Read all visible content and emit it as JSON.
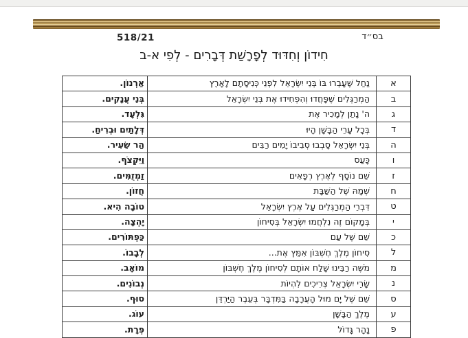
{
  "page": {
    "bsd": "בס״ד",
    "doc_number": "518/21",
    "title": "חִידוֹן וְחִדּוּד לְפָרָשַׁת דְּבָרִים - לְפִי א-ב"
  },
  "colors": {
    "gold_dark": "#46320f",
    "gold_light": "#f3e1ad",
    "table_border": "#3c3c3c",
    "text": "#1c1c1c",
    "top_strip": "#f1f1ef"
  },
  "table": {
    "rows": [
      {
        "letter": "א",
        "question": "נַחַל שֶׁעָבְרוּ בּוֹ בְּנֵי יִשְׂרָאֵל לִפְנֵי כְּנִיסָתָם לָאָרֶץ",
        "answer": "אַרְנוֹן."
      },
      {
        "letter": "ב",
        "question": "הַמְרַגְּלִים שֶׁפָּחֲדוּ וְהִפְחִידוּ אֶת בְּנֵי יִשְׂרָאֵל",
        "answer": "בְּנֵי עֲנָקִים."
      },
      {
        "letter": "ג",
        "question": "ה' נָתַן לְמָכִיר אֶת",
        "answer": "גִּלְעָד."
      },
      {
        "letter": "ד",
        "question": "בְּכָל עָרֵי הַבָּשָׁן הָיוּ",
        "answer": "דְּלָתַיִם וּבְרִיחַ."
      },
      {
        "letter": "ה",
        "question": "בְּנֵי יִשְׂרָאֵל סָבְבוּ סְבִיבוֹ יָמִים רַבִּים",
        "answer": "הַר שֵׂעִיר."
      },
      {
        "letter": "ו",
        "question": "כָּעַס",
        "answer": "וַיִּקְצֹף."
      },
      {
        "letter": "ז",
        "question": "שֵׁם נוֹסָף לְאֶרֶץ רְפָאִים",
        "answer": "זַמְזֻמִּים."
      },
      {
        "letter": "ח",
        "question": "שְׁמָהּ שֶׁל הַשַּׁבָּת",
        "answer": "חֲזוֹן."
      },
      {
        "letter": "ט",
        "question": "דִּבְרֵי הַמְרַגְּלִים עַל אֶרֶץ יִשְׂרָאֵל",
        "answer": "טוֹבָה הִיא."
      },
      {
        "letter": "י",
        "question": "בְּמָקוֹם זֶה נִלְחֲמוּ יִשְׂרָאֵל בְּסִיחוֹן",
        "answer": "יָהְצָה."
      },
      {
        "letter": "כ",
        "question": "שֵׁם שֶׁל עַם",
        "answer": "כַּפְתּוֹרִים."
      },
      {
        "letter": "ל",
        "question": "סִיחוֹן מֶלֶךְ חֶשְׁבּוֹן אִמֵּץ אֶת...",
        "answer": "לְבָבוֹ."
      },
      {
        "letter": "מ",
        "question": "מֹשֶׁה רַבֵּינוּ שָׁלַח אוֹתָם לְסִיחוֹן מֶלֶךְ חֶשְׁבּוֹן",
        "answer": "מוֹאָב."
      },
      {
        "letter": "נ",
        "question": "שָׂרֵי יִשְׂרָאֵל צְרִיכִים לִהְיוֹת",
        "answer": "נְבוֹנִים."
      },
      {
        "letter": "ס",
        "question": "שֵׁם שֶׁל יָם מוּל הָעֲרָבָה בַּמִּדְבָּר בְּעֵבֶר הַיַּרְדֵּן",
        "answer": "סוּף."
      },
      {
        "letter": "ע",
        "question": "מֶלֶךְ הַבָּשָׁן",
        "answer": "עוֹג."
      },
      {
        "letter": "פ",
        "question": "נָהָר גָּדוֹל",
        "answer": "פְּרָת."
      }
    ]
  }
}
